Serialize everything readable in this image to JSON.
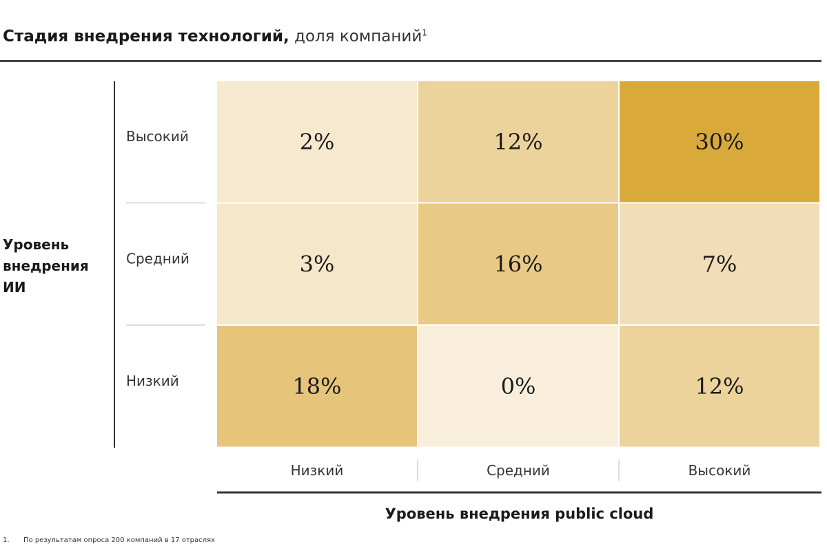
{
  "chart_data": {
    "type": "heatmap",
    "title": "Стадия внедрения технологий,",
    "subtitle": "доля компаний",
    "title_footnote_mark": "1",
    "xlabel": "Уровень внедрения public cloud",
    "ylabel": "Уровень внедрения ИИ",
    "x_categories": [
      "Низкий",
      "Средний",
      "Высокий"
    ],
    "y_categories": [
      "Высокий",
      "Средний",
      "Низкий"
    ],
    "values": [
      [
        2,
        12,
        30
      ],
      [
        3,
        16,
        7
      ],
      [
        18,
        0,
        12
      ]
    ],
    "value_labels": [
      [
        "2%",
        "12%",
        "30%"
      ],
      [
        "3%",
        "16%",
        "7%"
      ],
      [
        "18%",
        "0%",
        "12%"
      ]
    ],
    "unit": "%",
    "color_scale": {
      "low": "#f9eedb",
      "high": "#d9a93b"
    },
    "legend": "none",
    "grid": false
  },
  "footnote": {
    "number": "1.",
    "text": "По результатам опроса 200 компаний в 17 отраслях"
  }
}
